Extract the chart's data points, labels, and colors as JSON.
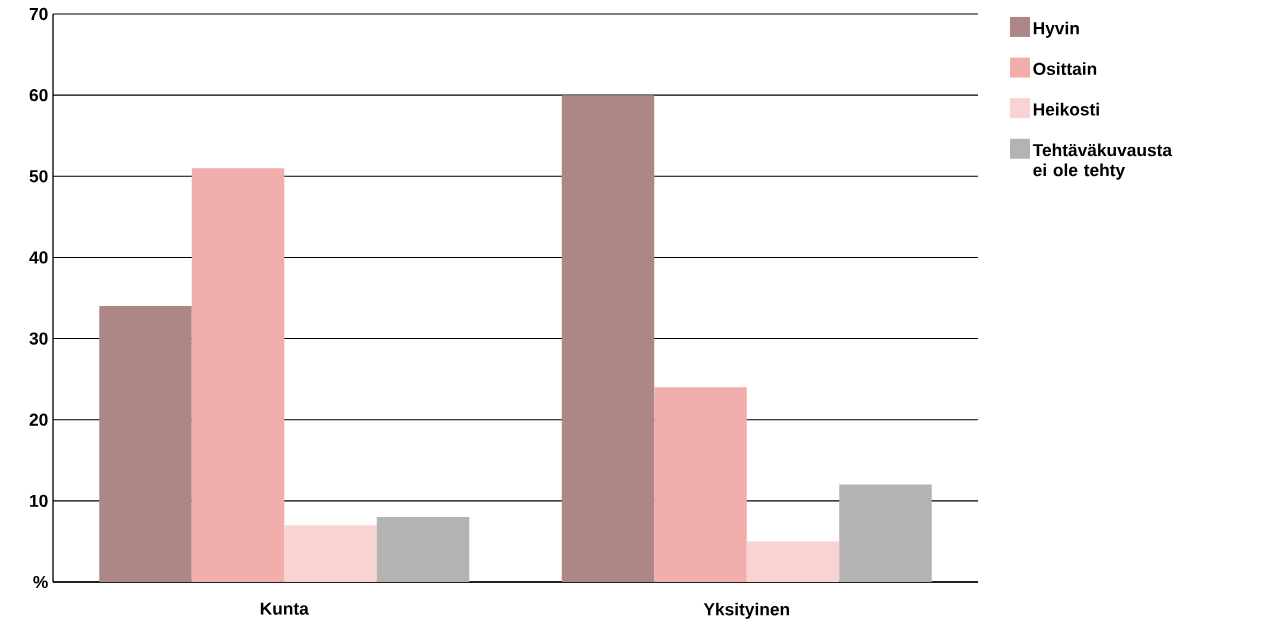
{
  "chart_data": {
    "type": "bar",
    "categories": [
      "Kunta",
      "Yksityinen"
    ],
    "series": [
      {
        "name": "Hyvin",
        "color": "#ad8785",
        "values": [
          34,
          60
        ]
      },
      {
        "name": "Osittain",
        "color": "#f2aeac",
        "values": [
          51,
          24
        ]
      },
      {
        "name": "Heikosti",
        "color": "#f8d3d2",
        "values": [
          7,
          5
        ]
      },
      {
        "name": "Tehtäväkuvausta ei ole tehty",
        "color": "#b3b3b3",
        "values": [
          8,
          12
        ]
      }
    ],
    "ylim": [
      0,
      70
    ],
    "yticks": [
      {
        "value": 0,
        "label": "%"
      },
      10,
      20,
      30,
      40,
      50,
      60,
      70
    ],
    "grid": "y",
    "legend": "top right"
  }
}
